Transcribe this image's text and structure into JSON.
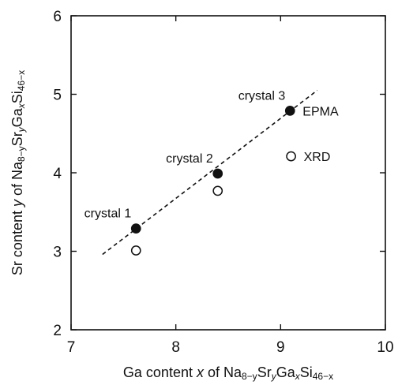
{
  "chart_data": {
    "type": "scatter",
    "xlim": [
      7,
      10
    ],
    "ylim": [
      2,
      6
    ],
    "xticks": [
      7,
      8,
      9,
      10
    ],
    "yticks": [
      2,
      3,
      4,
      5,
      6
    ],
    "xlabel": {
      "parts": [
        {
          "t": "Ga content ",
          "italic": false
        },
        {
          "t": "x",
          "italic": true
        },
        {
          "t": " of Na",
          "italic": false
        },
        {
          "t": "8−y",
          "sub": true
        },
        {
          "t": "Sr",
          "italic": false
        },
        {
          "t": "y",
          "sub": true,
          "italic": true
        },
        {
          "t": "Ga",
          "italic": false
        },
        {
          "t": "x",
          "sub": true,
          "italic": true
        },
        {
          "t": "Si",
          "italic": false
        },
        {
          "t": "46−x",
          "sub": true
        }
      ]
    },
    "ylabel": {
      "parts": [
        {
          "t": "Sr content ",
          "italic": false
        },
        {
          "t": "y",
          "italic": true
        },
        {
          "t": " of Na",
          "italic": false
        },
        {
          "t": "8−y",
          "sub": true
        },
        {
          "t": "Sr",
          "italic": false
        },
        {
          "t": "y",
          "sub": true,
          "italic": true
        },
        {
          "t": "Ga",
          "italic": false
        },
        {
          "t": "x",
          "sub": true,
          "italic": true
        },
        {
          "t": "Si",
          "italic": false
        },
        {
          "t": "46−x",
          "sub": true
        }
      ]
    },
    "series": [
      {
        "name": "EPMA",
        "marker": "filled-circle",
        "points": [
          {
            "x": 7.62,
            "y": 3.29,
            "label": "crystal 1"
          },
          {
            "x": 8.4,
            "y": 3.99,
            "label": "crystal 2"
          },
          {
            "x": 9.09,
            "y": 4.79,
            "label": "crystal 3"
          }
        ]
      },
      {
        "name": "XRD",
        "marker": "open-circle",
        "points": [
          {
            "x": 7.62,
            "y": 3.01
          },
          {
            "x": 8.4,
            "y": 3.77
          },
          {
            "x": 9.1,
            "y": 4.21
          }
        ]
      }
    ],
    "fit_line": {
      "style": "dashed",
      "points": [
        {
          "x": 7.3,
          "y": 2.96
        },
        {
          "x": 9.35,
          "y": 5.05
        }
      ]
    },
    "legend": "inline-right-of-markers",
    "grid": false,
    "colors": {
      "ink": "#111111",
      "background": "#ffffff"
    }
  }
}
